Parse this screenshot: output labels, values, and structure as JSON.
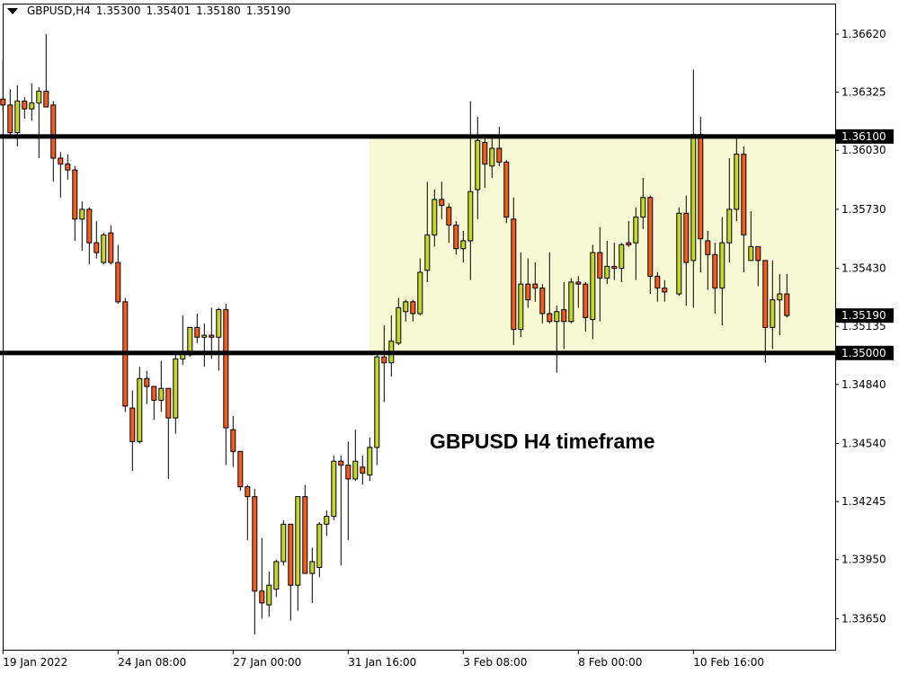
{
  "header": {
    "dropdown_icon": "triangle-down-icon",
    "symbol": "GBPUSD,H4",
    "open": "1.35300",
    "high": "1.35401",
    "low": "1.35180",
    "close": "1.35190"
  },
  "annotation": "GBPUSD H4 timeframe",
  "colors": {
    "bull": "#C3D62B",
    "bear": "#F25C1E",
    "zone": "#F7F8D4",
    "line": "#000000",
    "background": "#FFFFFF"
  },
  "chart_data": {
    "type": "candlestick",
    "symbol": "GBPUSD",
    "timeframe": "H4",
    "ylim": [
      1.3351,
      1.367
    ],
    "y_ticks": [
      "1.36620",
      "1.36325",
      "1.36030",
      "1.35730",
      "1.35430",
      "1.35135",
      "1.34840",
      "1.34540",
      "1.34245",
      "1.33950",
      "1.33650"
    ],
    "x_ticks": [
      {
        "bar": 0,
        "label": "19 Jan 2022"
      },
      {
        "bar": 16,
        "label": "24 Jan 08:00"
      },
      {
        "bar": 32,
        "label": "27 Jan 00:00"
      },
      {
        "bar": 48,
        "label": "31 Jan 16:00"
      },
      {
        "bar": 64,
        "label": "3 Feb 08:00"
      },
      {
        "bar": 80,
        "label": "8 Feb 00:00"
      },
      {
        "bar": 96,
        "label": "10 Feb 16:00"
      }
    ],
    "horizontal_lines": [
      {
        "price": 1.361,
        "label": "1.36100"
      },
      {
        "price": 1.35,
        "label": "1.35000"
      }
    ],
    "current_price": {
      "price": 1.3519,
      "label": "1.35190"
    },
    "zone": {
      "from_bar": 51,
      "price_low": 1.35,
      "price_high": 1.361
    },
    "ohlc": [
      [
        1.3629,
        1.3649,
        1.3622,
        1.3626
      ],
      [
        1.3626,
        1.3634,
        1.3611,
        1.3612
      ],
      [
        1.3612,
        1.3636,
        1.3605,
        1.3628
      ],
      [
        1.3628,
        1.363,
        1.3619,
        1.3624
      ],
      [
        1.3624,
        1.3637,
        1.3618,
        1.3627
      ],
      [
        1.3627,
        1.3635,
        1.3599,
        1.3633
      ],
      [
        1.3633,
        1.3662,
        1.3626,
        1.3625
      ],
      [
        1.3626,
        1.3628,
        1.3587,
        1.3599
      ],
      [
        1.3599,
        1.3602,
        1.3579,
        1.3596
      ],
      [
        1.3596,
        1.3601,
        1.3588,
        1.3593
      ],
      [
        1.3593,
        1.3595,
        1.3557,
        1.3568
      ],
      [
        1.3568,
        1.3577,
        1.3552,
        1.3573
      ],
      [
        1.3573,
        1.3574,
        1.3545,
        1.3556
      ],
      [
        1.3556,
        1.3567,
        1.3548,
        1.3551
      ],
      [
        1.3546,
        1.3561,
        1.3545,
        1.356
      ],
      [
        1.3561,
        1.3565,
        1.3545,
        1.3546
      ],
      [
        1.3546,
        1.3555,
        1.3525,
        1.3526
      ],
      [
        1.3526,
        1.3528,
        1.347,
        1.3473
      ],
      [
        1.3472,
        1.3481,
        1.344,
        1.3455
      ],
      [
        1.3455,
        1.3493,
        1.3454,
        1.3487
      ],
      [
        1.3487,
        1.3491,
        1.3474,
        1.3483
      ],
      [
        1.3483,
        1.3483,
        1.3466,
        1.3476
      ],
      [
        1.3476,
        1.3496,
        1.347,
        1.3482
      ],
      [
        1.3482,
        1.3482,
        1.3436,
        1.3467
      ],
      [
        1.3467,
        1.35,
        1.3459,
        1.3497
      ],
      [
        1.3497,
        1.3519,
        1.3494,
        1.35
      ],
      [
        1.3499,
        1.3513,
        1.3498,
        1.3513
      ],
      [
        1.3513,
        1.352,
        1.3505,
        1.3508
      ],
      [
        1.3508,
        1.3515,
        1.3493,
        1.3509
      ],
      [
        1.3509,
        1.3523,
        1.3497,
        1.3508
      ],
      [
        1.3508,
        1.3523,
        1.3491,
        1.3522
      ],
      [
        1.3522,
        1.3525,
        1.3443,
        1.3462
      ],
      [
        1.3461,
        1.3468,
        1.3442,
        1.345
      ],
      [
        1.345,
        1.345,
        1.343,
        1.3432
      ],
      [
        1.3432,
        1.3433,
        1.3405,
        1.3427
      ],
      [
        1.3427,
        1.3431,
        1.3357,
        1.3379
      ],
      [
        1.3379,
        1.3406,
        1.3365,
        1.3373
      ],
      [
        1.3372,
        1.3389,
        1.3366,
        1.3382
      ],
      [
        1.338,
        1.3395,
        1.3376,
        1.3394
      ],
      [
        1.3394,
        1.3415,
        1.3392,
        1.3413
      ],
      [
        1.3413,
        1.3413,
        1.3364,
        1.3382
      ],
      [
        1.3382,
        1.3427,
        1.3369,
        1.3427
      ],
      [
        1.3427,
        1.3433,
        1.3388,
        1.3388
      ],
      [
        1.3388,
        1.3401,
        1.3373,
        1.3394
      ],
      [
        1.3391,
        1.3414,
        1.3386,
        1.3413
      ],
      [
        1.3413,
        1.342,
        1.3407,
        1.3417
      ],
      [
        1.3417,
        1.3448,
        1.3415,
        1.3445
      ],
      [
        1.3445,
        1.3448,
        1.3392,
        1.3443
      ],
      [
        1.3443,
        1.3455,
        1.3405,
        1.3436
      ],
      [
        1.3436,
        1.3461,
        1.3435,
        1.3445
      ],
      [
        1.3442,
        1.3448,
        1.3433,
        1.3439
      ],
      [
        1.3438,
        1.3457,
        1.3435,
        1.3452
      ],
      [
        1.3452,
        1.35,
        1.3443,
        1.3498
      ],
      [
        1.3498,
        1.3514,
        1.3475,
        1.3495
      ],
      [
        1.3495,
        1.3519,
        1.3488,
        1.3506
      ],
      [
        1.3505,
        1.3528,
        1.3504,
        1.3523
      ],
      [
        1.3521,
        1.3527,
        1.3516,
        1.3526
      ],
      [
        1.3526,
        1.3527,
        1.3516,
        1.352
      ],
      [
        1.352,
        1.3548,
        1.3519,
        1.3541
      ],
      [
        1.3542,
        1.3587,
        1.3536,
        1.356
      ],
      [
        1.356,
        1.3583,
        1.3554,
        1.3578
      ],
      [
        1.3578,
        1.3587,
        1.3568,
        1.3575
      ],
      [
        1.3574,
        1.3576,
        1.3556,
        1.3565
      ],
      [
        1.3565,
        1.3567,
        1.355,
        1.3553
      ],
      [
        1.3553,
        1.3562,
        1.3546,
        1.3557
      ],
      [
        1.3557,
        1.3628,
        1.3537,
        1.3582
      ],
      [
        1.3583,
        1.362,
        1.3568,
        1.3608
      ],
      [
        1.3607,
        1.3611,
        1.3584,
        1.3596
      ],
      [
        1.3595,
        1.3611,
        1.3589,
        1.3604
      ],
      [
        1.3604,
        1.3615,
        1.3595,
        1.3597
      ],
      [
        1.3597,
        1.3598,
        1.3566,
        1.3569
      ],
      [
        1.3568,
        1.3579,
        1.3504,
        1.3512
      ],
      [
        1.3512,
        1.3551,
        1.3508,
        1.3535
      ],
      [
        1.3535,
        1.3548,
        1.3523,
        1.3527
      ],
      [
        1.3535,
        1.3546,
        1.3526,
        1.3533
      ],
      [
        1.3533,
        1.3535,
        1.3515,
        1.352
      ],
      [
        1.352,
        1.3551,
        1.3515,
        1.3516
      ],
      [
        1.3516,
        1.3524,
        1.349,
        1.3521
      ],
      [
        1.3522,
        1.3536,
        1.3502,
        1.3516
      ],
      [
        1.3516,
        1.3538,
        1.3515,
        1.3536
      ],
      [
        1.3536,
        1.3539,
        1.3523,
        1.3535
      ],
      [
        1.3535,
        1.3536,
        1.3511,
        1.3518
      ],
      [
        1.3517,
        1.3555,
        1.3507,
        1.3551
      ],
      [
        1.3551,
        1.3564,
        1.3516,
        1.3538
      ],
      [
        1.3538,
        1.3557,
        1.3535,
        1.3544
      ],
      [
        1.3544,
        1.3556,
        1.3537,
        1.3543
      ],
      [
        1.3543,
        1.3556,
        1.3536,
        1.3555
      ],
      [
        1.3556,
        1.3567,
        1.3554,
        1.3555
      ],
      [
        1.3556,
        1.3574,
        1.3537,
        1.3569
      ],
      [
        1.3569,
        1.3589,
        1.3563,
        1.3579
      ],
      [
        1.3579,
        1.358,
        1.353,
        1.3539
      ],
      [
        1.3539,
        1.3541,
        1.3526,
        1.3533
      ],
      [
        1.3533,
        1.3537,
        1.3526,
        1.3531
      ],
      null,
      [
        1.353,
        1.3574,
        1.3529,
        1.3571
      ],
      [
        1.3571,
        1.358,
        1.3524,
        1.3546
      ],
      [
        1.3547,
        1.3644,
        1.3523,
        1.3611
      ],
      [
        1.3611,
        1.362,
        1.3541,
        1.3558
      ],
      [
        1.3557,
        1.3562,
        1.3532,
        1.355
      ],
      [
        1.355,
        1.3556,
        1.352,
        1.3533
      ],
      [
        1.3533,
        1.3569,
        1.3514,
        1.3556
      ],
      [
        1.3556,
        1.3599,
        1.3546,
        1.3573
      ],
      [
        1.3573,
        1.3611,
        1.3567,
        1.3601
      ],
      [
        1.3601,
        1.3605,
        1.3541,
        1.356
      ],
      [
        1.3547,
        1.3572,
        1.3547,
        1.3554
      ],
      [
        1.3554,
        1.3554,
        1.3534,
        1.3547
      ],
      [
        1.3547,
        1.3547,
        1.3495,
        1.3513
      ],
      [
        1.3513,
        1.3547,
        1.3502,
        1.3527
      ],
      [
        1.3527,
        1.354,
        1.3509,
        1.353
      ],
      [
        1.353,
        1.35401,
        1.3518,
        1.3519
      ]
    ]
  }
}
